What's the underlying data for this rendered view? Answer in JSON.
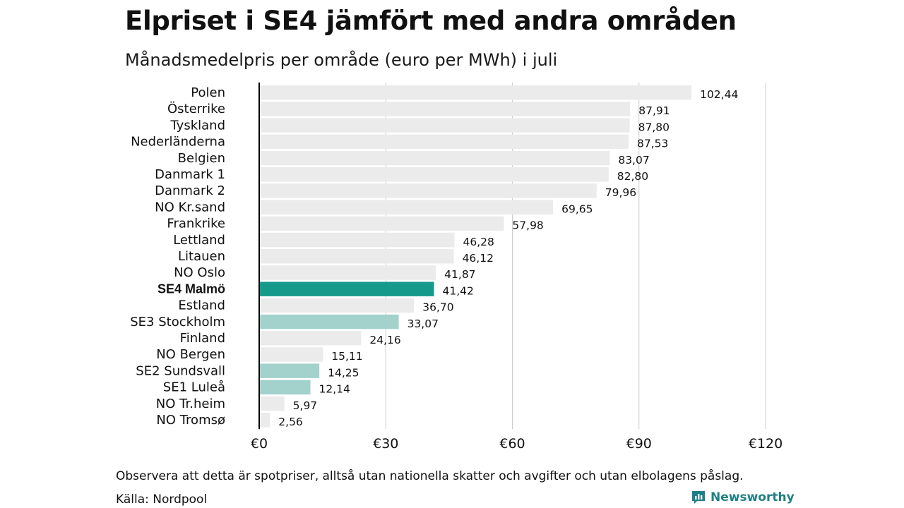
{
  "title": "Elpriset i SE4 jämfört med andra områden",
  "subtitle": "Månadsmedelpris per område (euro per MWh) i juli",
  "note": "Observera att detta är spotpriser, alltså utan nationella skatter och avgifter och utan elbolagens påslag.",
  "source": "Källa: Nordpool",
  "brand": "Newsworthy",
  "colors": {
    "default_bar": "#ebebeb",
    "highlight_bar": "#14998b",
    "se_bar": "#a3d1cc",
    "grid": "#cccccc",
    "axis": "#000000",
    "brand": "#1f7f86"
  },
  "chart_data": {
    "type": "bar",
    "orientation": "horizontal",
    "xlim": [
      0,
      120
    ],
    "xticks": [
      "€0",
      "€30",
      "€60",
      "€90",
      "€120"
    ],
    "xtick_values": [
      0,
      30,
      60,
      90,
      120
    ],
    "grid": true,
    "categories": [
      "Polen",
      "Österrike",
      "Tyskland",
      "Nederländerna",
      "Belgien",
      "Danmark  1",
      "Danmark  2",
      "NO Kr.sand",
      "Frankrike",
      "Lettland",
      "Litauen",
      "NO Oslo",
      "SE4 Malmö",
      "Estland",
      "SE3  Stockholm",
      "Finland",
      "NO Bergen",
      "SE2  Sundsvall",
      "SE1  Luleå",
      "NO Tr.heim",
      "NO Tromsø"
    ],
    "values": [
      102.44,
      87.91,
      87.8,
      87.53,
      83.07,
      82.8,
      79.96,
      69.65,
      57.98,
      46.28,
      46.12,
      41.87,
      41.42,
      36.7,
      33.07,
      24.16,
      15.11,
      14.25,
      12.14,
      5.97,
      2.56
    ],
    "value_labels": [
      "102,44",
      "87,91",
      "87,80",
      "87,53",
      "83,07",
      "82,80",
      "79,96",
      "69,65",
      "57,98",
      "46,28",
      "46,12",
      "41,87",
      "41,42",
      "36,70",
      "33,07",
      "24,16",
      "15,11",
      "14,25",
      "12,14",
      "5,97",
      "2,56"
    ],
    "highlight": [
      "SE4 Malmö"
    ],
    "secondary_highlight": [
      "SE3  Stockholm",
      "SE2  Sundsvall",
      "SE1  Luleå"
    ]
  }
}
